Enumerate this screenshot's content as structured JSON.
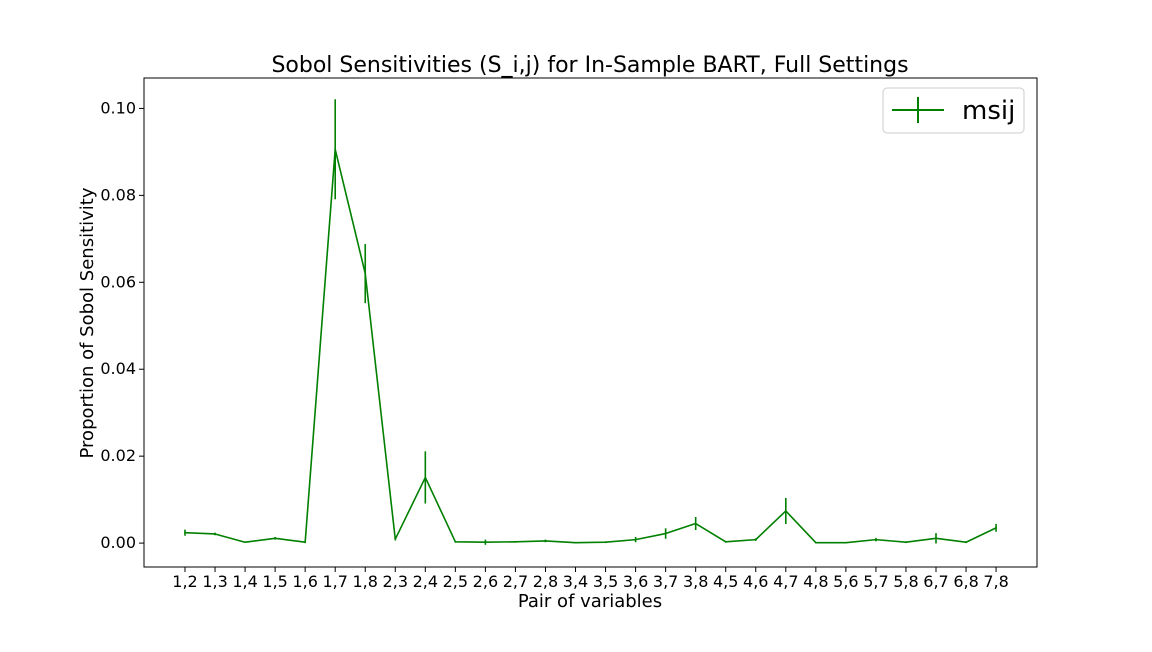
{
  "chart_data": {
    "type": "line",
    "title": "Sobol Sensitivities (S_i,j) for In-Sample BART, Full Settings",
    "xlabel": "Pair of variables",
    "ylabel": "Proportion of Sobol Sensitivity",
    "categories": [
      "1,2",
      "1,3",
      "1,4",
      "1,5",
      "1,6",
      "1,7",
      "1,8",
      "2,3",
      "2,4",
      "2,5",
      "2,6",
      "2,7",
      "2,8",
      "3,4",
      "3,5",
      "3,6",
      "3,7",
      "3,8",
      "4,5",
      "4,6",
      "4,7",
      "4,8",
      "5,6",
      "5,7",
      "5,8",
      "6,7",
      "6,8",
      "7,8"
    ],
    "ylim": [
      -0.0055,
      0.107
    ],
    "yticks": [
      0.0,
      0.02,
      0.04,
      0.06,
      0.08,
      0.1
    ],
    "ytick_labels": [
      "0.00",
      "0.02",
      "0.04",
      "0.06",
      "0.08",
      "0.10"
    ],
    "grid": false,
    "legend_position": "top-right",
    "series": [
      {
        "name": "msij",
        "color": "#008000",
        "values": [
          0.0024,
          0.0021,
          0.0002,
          0.0011,
          0.0002,
          0.0906,
          0.062,
          0.0009,
          0.0151,
          0.0003,
          0.0002,
          0.0003,
          0.0005,
          0.0001,
          0.0002,
          0.0008,
          0.0022,
          0.0045,
          0.0003,
          0.0008,
          0.0074,
          0.0001,
          0.0001,
          0.0008,
          0.0002,
          0.0011,
          0.0002,
          0.0035
        ],
        "errors": [
          0.0007,
          0.0003,
          0.0001,
          0.0003,
          0.0002,
          0.0115,
          0.0068,
          0.0003,
          0.006,
          0.0002,
          0.0006,
          0.0002,
          0.0003,
          0.0001,
          0.0002,
          0.0006,
          0.0012,
          0.0015,
          0.0002,
          0.0003,
          0.003,
          0.0001,
          0.0001,
          0.0004,
          0.0002,
          0.0012,
          0.0002,
          0.0009
        ]
      }
    ]
  }
}
